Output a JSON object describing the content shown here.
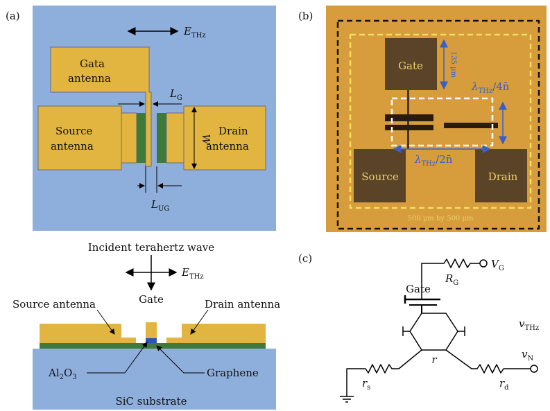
{
  "panel_labels": [
    "(a)",
    "(b)",
    "(c)"
  ],
  "panel_a": {
    "top": {
      "field": [
        "E",
        "THz"
      ],
      "gate_antenna": [
        "Gata",
        "antenna"
      ],
      "source_antenna": [
        "Source",
        "antenna"
      ],
      "drain_antenna": [
        "Drain",
        "antenna"
      ],
      "gate_length": [
        "L",
        "G"
      ],
      "width": "W",
      "ungated_length": [
        "L",
        "UG"
      ]
    },
    "cross_section": {
      "incident": "Incident terahertz wave",
      "field": [
        "E",
        "THz"
      ],
      "gate": "Gate",
      "source_antenna": "Source antenna",
      "drain_antenna": "Drain antenna",
      "oxide": [
        "Al",
        "2",
        "O",
        "3"
      ],
      "graphene": "Graphene",
      "substrate": "SiC substrate"
    }
  },
  "panel_b": {
    "gate": "Gate",
    "gate_size": "135 μm",
    "quarter": [
      "λ",
      "THz",
      "/4n̄"
    ],
    "half": [
      "λ",
      "THz",
      "/2n̄"
    ],
    "source": "Source",
    "drain": "Drain",
    "size": "500 μm by 500 μm"
  },
  "panel_c": {
    "gate_voltage": [
      "V",
      "G"
    ],
    "gate_resistor": [
      "R",
      "G"
    ],
    "gate": "Gate",
    "thz_voltage": [
      "v",
      "THz"
    ],
    "noise_voltage": [
      "v",
      "N"
    ],
    "channel": "r",
    "source_resistor": [
      "r",
      "s"
    ],
    "drain_resistor": [
      "r",
      "d"
    ]
  }
}
